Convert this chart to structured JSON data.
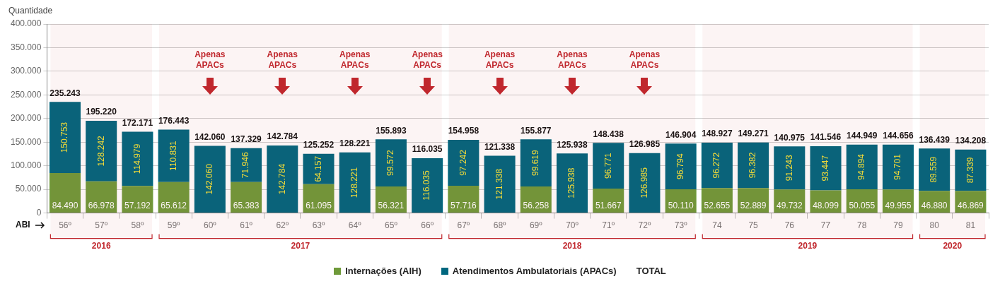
{
  "chart_data": {
    "type": "bar",
    "stacked": true,
    "ylabel": "Quantidade",
    "xlabel": "ABI",
    "categories": [
      "56º",
      "57º",
      "58º",
      "59º",
      "60º",
      "61º",
      "62º",
      "63º",
      "64º",
      "65º",
      "66º",
      "67º",
      "68º",
      "69º",
      "70º",
      "71º",
      "72º",
      "73º",
      "74",
      "75",
      "76",
      "77",
      "78",
      "79",
      "80",
      "81"
    ],
    "series": [
      {
        "name": "Internações (AIH)",
        "color": "#6f9a3a",
        "values": [
          84490,
          66978,
          57192,
          65612,
          null,
          65383,
          null,
          61095,
          null,
          56321,
          null,
          57716,
          null,
          56258,
          null,
          51667,
          null,
          50110,
          52655,
          52889,
          49732,
          48099,
          50055,
          49955,
          46880,
          46869
        ],
        "value_labels": [
          "84.490",
          "66.978",
          "57.192",
          "65.612",
          null,
          "65.383",
          null,
          "61.095",
          null,
          "56.321",
          null,
          "57.716",
          null,
          "56.258",
          null,
          "51.667",
          null,
          "50.110",
          "52.655",
          "52.889",
          "49.732",
          "48.099",
          "50.055",
          "49.955",
          "46.880",
          "46.869"
        ]
      },
      {
        "name": "Atendimentos Ambulatoriais (APACs)",
        "color": "#00677f",
        "values": [
          150753,
          128242,
          114979,
          110831,
          142060,
          71946,
          142784,
          64157,
          128221,
          99572,
          116035,
          97242,
          121338,
          99619,
          125938,
          96771,
          126985,
          96794,
          96272,
          96382,
          91243,
          93447,
          94894,
          94701,
          89559,
          87339
        ],
        "value_labels": [
          "150.753",
          "128.242",
          "114.979",
          "110.831",
          "142.060",
          "71.946",
          "142.784",
          "64.157",
          "128.221",
          "99.572",
          "116.035",
          "97.242",
          "121.338",
          "99.619",
          "125.938",
          "96.771",
          "126.985",
          "96.794",
          "96.272",
          "96.382",
          "91.243",
          "93.447",
          "94.894",
          "94.701",
          "89.559",
          "87.339"
        ]
      }
    ],
    "totals": [
      "235.243",
      "195.220",
      "172.171",
      "176.443",
      "142.060",
      "137.329",
      "142.784",
      "125.252",
      "128.221",
      "155.893",
      "116.035",
      "154.958",
      "121.338",
      "155.877",
      "125.938",
      "148.438",
      "126.985",
      "146.904",
      "148.927",
      "149.271",
      "140.975",
      "141.546",
      "144.949",
      "144.656",
      "136.439",
      "134.208"
    ],
    "ylim": [
      0,
      400000
    ],
    "yticks": [
      {
        "value": 0,
        "label": "0"
      },
      {
        "value": 50000,
        "label": "50.000"
      },
      {
        "value": 100000,
        "label": "100.000"
      },
      {
        "value": 150000,
        "label": "150.000"
      },
      {
        "value": 200000,
        "label": "200.000"
      },
      {
        "value": 250000,
        "label": "250.000"
      },
      {
        "value": 300000,
        "label": "300.000"
      },
      {
        "value": 350000,
        "label": "350.000"
      },
      {
        "value": 400000,
        "label": "400.000"
      }
    ],
    "grid": "y",
    "legend": "bottom",
    "bands": [
      {
        "axis": "x",
        "from": "56º",
        "to": "58º",
        "label": "2016",
        "color": "#c0272d"
      },
      {
        "axis": "x",
        "from": "59º",
        "to": "66º",
        "label": "2017",
        "color": "#c0272d"
      },
      {
        "axis": "x",
        "from": "67º",
        "to": "73º",
        "label": "2018",
        "color": "#c0272d"
      },
      {
        "axis": "x",
        "from": "74",
        "to": "79",
        "label": "2019",
        "color": "#c0272d"
      },
      {
        "axis": "x",
        "from": "80",
        "to": "81",
        "label": "2020",
        "color": "#c0272d"
      }
    ],
    "annotations": [
      "Apenas APACs",
      "Apenas APACs",
      "Apenas APACs",
      "Apenas APACs",
      "Apenas APACs",
      "Apenas APACs",
      "Apenas APACs",
      "TOTAL"
    ]
  }
}
